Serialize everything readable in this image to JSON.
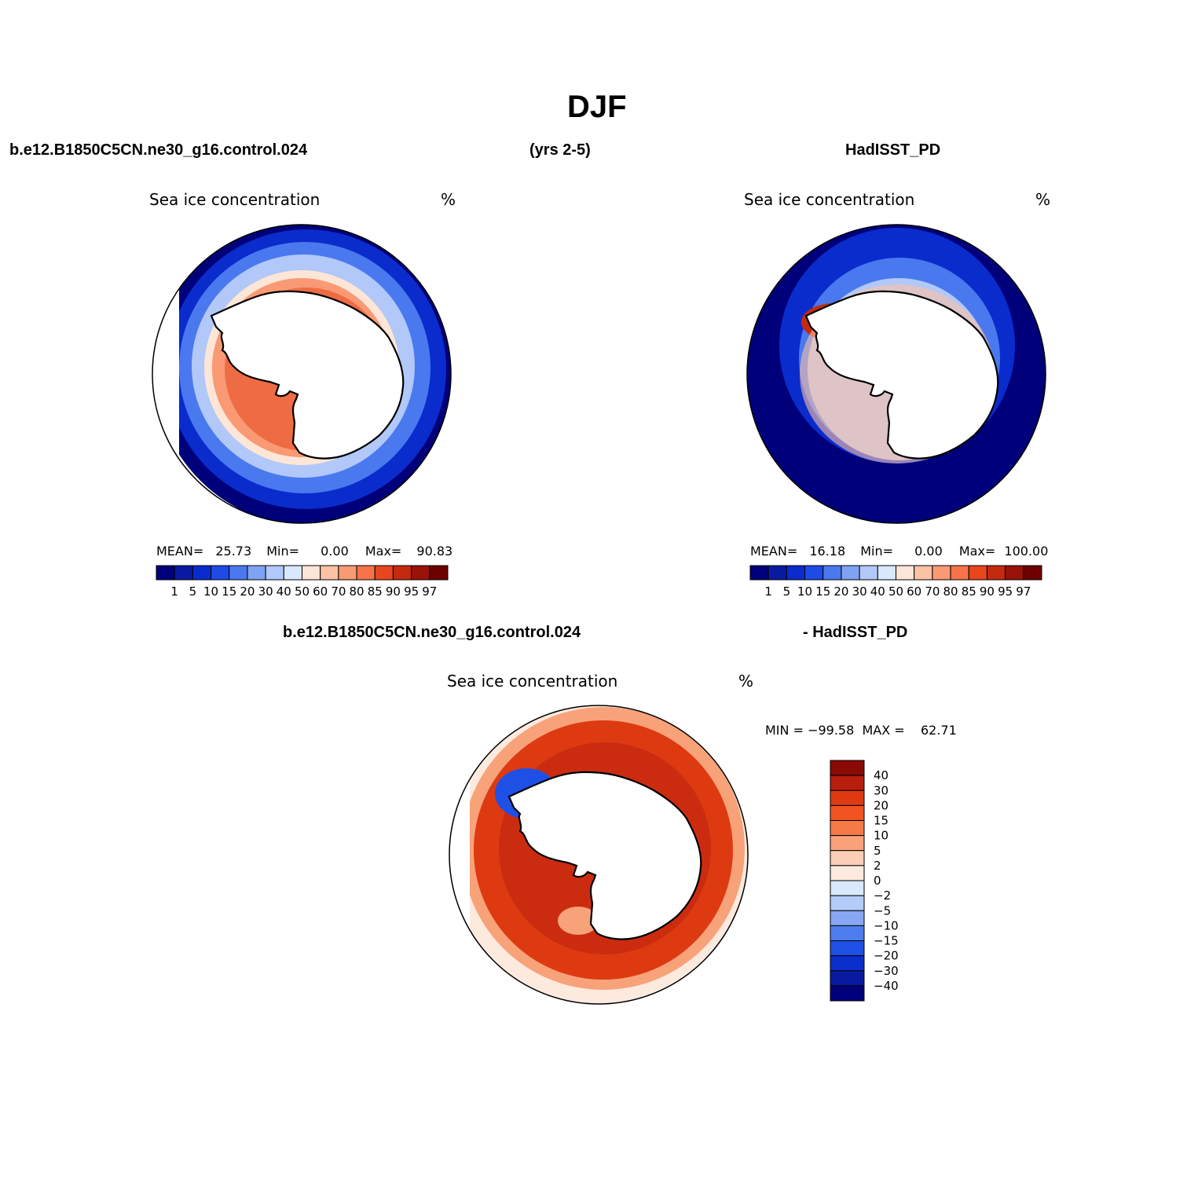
{
  "title": "DJF",
  "header": {
    "case_name": "b.e12.B1850C5CN.ne30_g16.control.024",
    "years": "(yrs 2-5)",
    "obs_name": "HadISST_PD"
  },
  "diff_header": {
    "case_name": "b.e12.B1850C5CN.ne30_g16.control.024",
    "obs_suffix": "- HadISST_PD"
  },
  "panels": {
    "model": {
      "variable": "Sea ice concentration",
      "units": "%",
      "stats": {
        "mean_label": "MEAN=",
        "mean": "25.73",
        "min_label": "Min=",
        "min": "0.00",
        "max_label": "Max=",
        "max": "90.83"
      }
    },
    "obs": {
      "variable": "Sea ice concentration",
      "units": "%",
      "stats": {
        "mean_label": "MEAN=",
        "mean": "16.18",
        "min_label": "Min=",
        "min": "0.00",
        "max_label": "Max=",
        "max": "100.00"
      }
    },
    "diff": {
      "variable": "Sea ice concentration",
      "units": "%",
      "minmax": "MIN = −99.58  MAX =    62.71"
    }
  },
  "abs_colorbar": {
    "levels": [
      "1",
      "5",
      "10",
      "15",
      "20",
      "30",
      "40",
      "50",
      "60",
      "70",
      "80",
      "85",
      "90",
      "95",
      "97"
    ],
    "colors": [
      "#00007a",
      "#0a1aa0",
      "#0a2ccc",
      "#1e4ae6",
      "#4a78ef",
      "#7ea2f4",
      "#b1c8f8",
      "#d9e8fc",
      "#fde6d7",
      "#fbc2a6",
      "#f99a74",
      "#f7744a",
      "#e8461e",
      "#c42a0e",
      "#9a1208",
      "#6e0000"
    ]
  },
  "diff_colorbar": {
    "levels": [
      "40",
      "30",
      "20",
      "15",
      "10",
      "5",
      "2",
      "0",
      "−2",
      "−5",
      "−10",
      "−15",
      "−20",
      "−30",
      "−40"
    ],
    "colors": [
      "#8a0a06",
      "#b81e0c",
      "#de3a12",
      "#f05422",
      "#f67a46",
      "#f8a27a",
      "#fbcfb5",
      "#fdeadf",
      "#d9e8fc",
      "#b4ccf8",
      "#86a8f4",
      "#4e7eee",
      "#1e50e6",
      "#0a30cc",
      "#0a1aa0",
      "#00007a"
    ]
  }
}
